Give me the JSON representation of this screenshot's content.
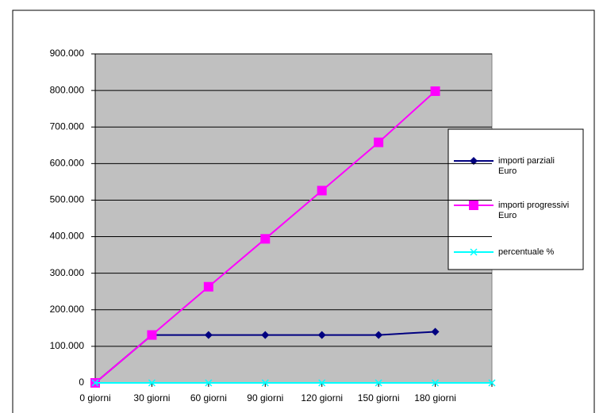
{
  "chart_data": {
    "type": "line",
    "categories": [
      "0 giorni",
      "30 giorni",
      "60 giorni",
      "90 giorni",
      "120 giorni",
      "150 giorni",
      "180 giorni",
      null
    ],
    "series": [
      {
        "name": "importi parziali Euro",
        "color": "#000080",
        "marker": "diamond",
        "values": [
          0,
          131000,
          131000,
          131000,
          131000,
          131000,
          140000,
          null
        ]
      },
      {
        "name": "importi progressivi Euro",
        "color": "#ff00ff",
        "marker": "square",
        "values": [
          0,
          131000,
          263000,
          394000,
          526000,
          658000,
          798000,
          null
        ]
      },
      {
        "name": "percentuale %",
        "color": "#00ffff",
        "marker": "x",
        "values": [
          0,
          0,
          0,
          0,
          0,
          0,
          0,
          0
        ]
      }
    ],
    "ylim": [
      0,
      900000
    ],
    "yticks": [
      0,
      {
        "value": 100000,
        "label": "100.000"
      },
      {
        "value": 200000,
        "label": "200.000"
      },
      {
        "value": 300000,
        "label": "300.000"
      },
      {
        "value": 400000,
        "label": "400.000"
      },
      {
        "value": 500000,
        "label": "500.000"
      },
      {
        "value": 600000,
        "label": "600.000"
      },
      {
        "value": 700000,
        "label": "700.000"
      },
      {
        "value": 800000,
        "label": "800.000"
      },
      {
        "value": 900000,
        "label": "900.000"
      }
    ],
    "grid": true,
    "legend": "right"
  }
}
